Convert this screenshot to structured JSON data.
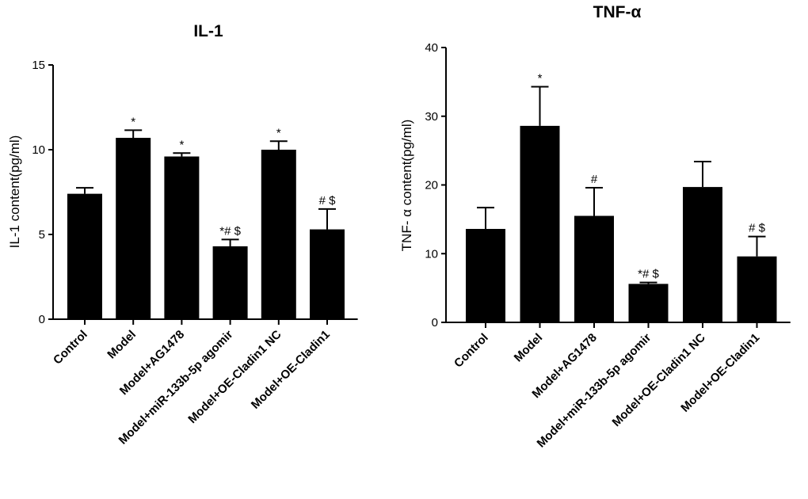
{
  "chart_data": [
    {
      "type": "bar",
      "title": "IL-1",
      "ylabel": "IL-1 content(pg/ml)",
      "xlabel": "",
      "ylim": [
        0,
        15
      ],
      "yticks": [
        0,
        5,
        10,
        15
      ],
      "categories": [
        "Control",
        "Model",
        "Model+AG1478",
        "Model+miR-133b-5p agomir",
        "Model+OE-Cladin1 NC",
        "Model+OE-Cladin1"
      ],
      "values": [
        7.4,
        10.7,
        9.6,
        4.3,
        10.0,
        5.3
      ],
      "errors": [
        0.35,
        0.45,
        0.2,
        0.4,
        0.5,
        1.2
      ],
      "annotations": [
        "",
        "*",
        "*",
        "*# $",
        "*",
        "# $"
      ],
      "color": "#000000"
    },
    {
      "type": "bar",
      "title": "TNF-α",
      "ylabel": "TNF- α content(pg/ml)",
      "xlabel": "",
      "ylim": [
        0,
        40
      ],
      "yticks": [
        0,
        10,
        20,
        30,
        40
      ],
      "categories": [
        "Control",
        "Model",
        "Model+AG1478",
        "Model+miR-133b-5p agomir",
        "Model+OE-Cladin1 NC",
        "Model+OE-Cladin1"
      ],
      "values": [
        13.6,
        28.6,
        15.5,
        5.6,
        19.7,
        9.6
      ],
      "errors": [
        3.1,
        5.7,
        4.1,
        0.2,
        3.7,
        2.9
      ],
      "annotations": [
        "",
        "*",
        "#",
        "*# $",
        "",
        "# $"
      ],
      "color": "#000000"
    }
  ]
}
